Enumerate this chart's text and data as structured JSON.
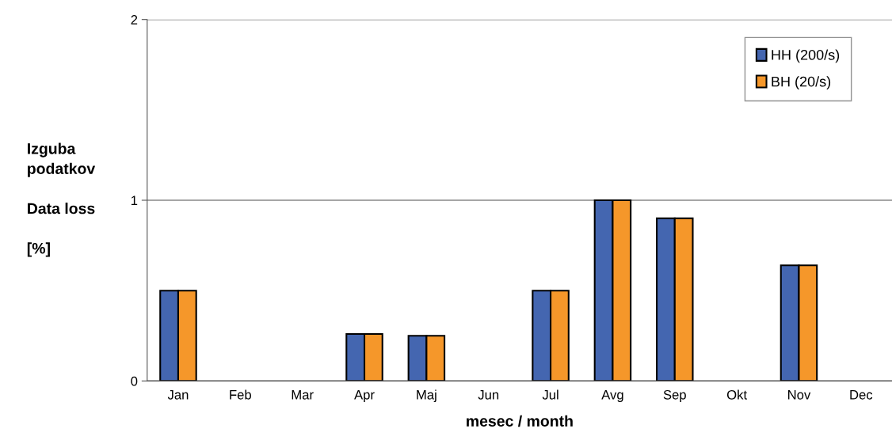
{
  "chart_data": {
    "type": "bar",
    "ylabel": "Izguba\npodatkov\n\nData loss\n\n[%]",
    "xlabel": "mesec / month",
    "categories": [
      "Jan",
      "Feb",
      "Mar",
      "Apr",
      "Maj",
      "Jun",
      "Jul",
      "Avg",
      "Sep",
      "Okt",
      "Nov",
      "Dec"
    ],
    "series": [
      {
        "name": "HH (200/s)",
        "color": "#4466b0",
        "values": [
          0.5,
          0,
          0,
          0.26,
          0.25,
          0,
          0.5,
          1.0,
          0.9,
          0,
          0.64,
          0
        ]
      },
      {
        "name": "BH (20/s)",
        "color": "#f5972a",
        "values": [
          0.5,
          0,
          0,
          0.26,
          0.25,
          0,
          0.5,
          1.0,
          0.9,
          0,
          0.64,
          0
        ]
      }
    ],
    "ylim": [
      0,
      2
    ],
    "yticks": [
      0,
      1,
      2
    ],
    "grid": "y",
    "legend": "top right"
  }
}
